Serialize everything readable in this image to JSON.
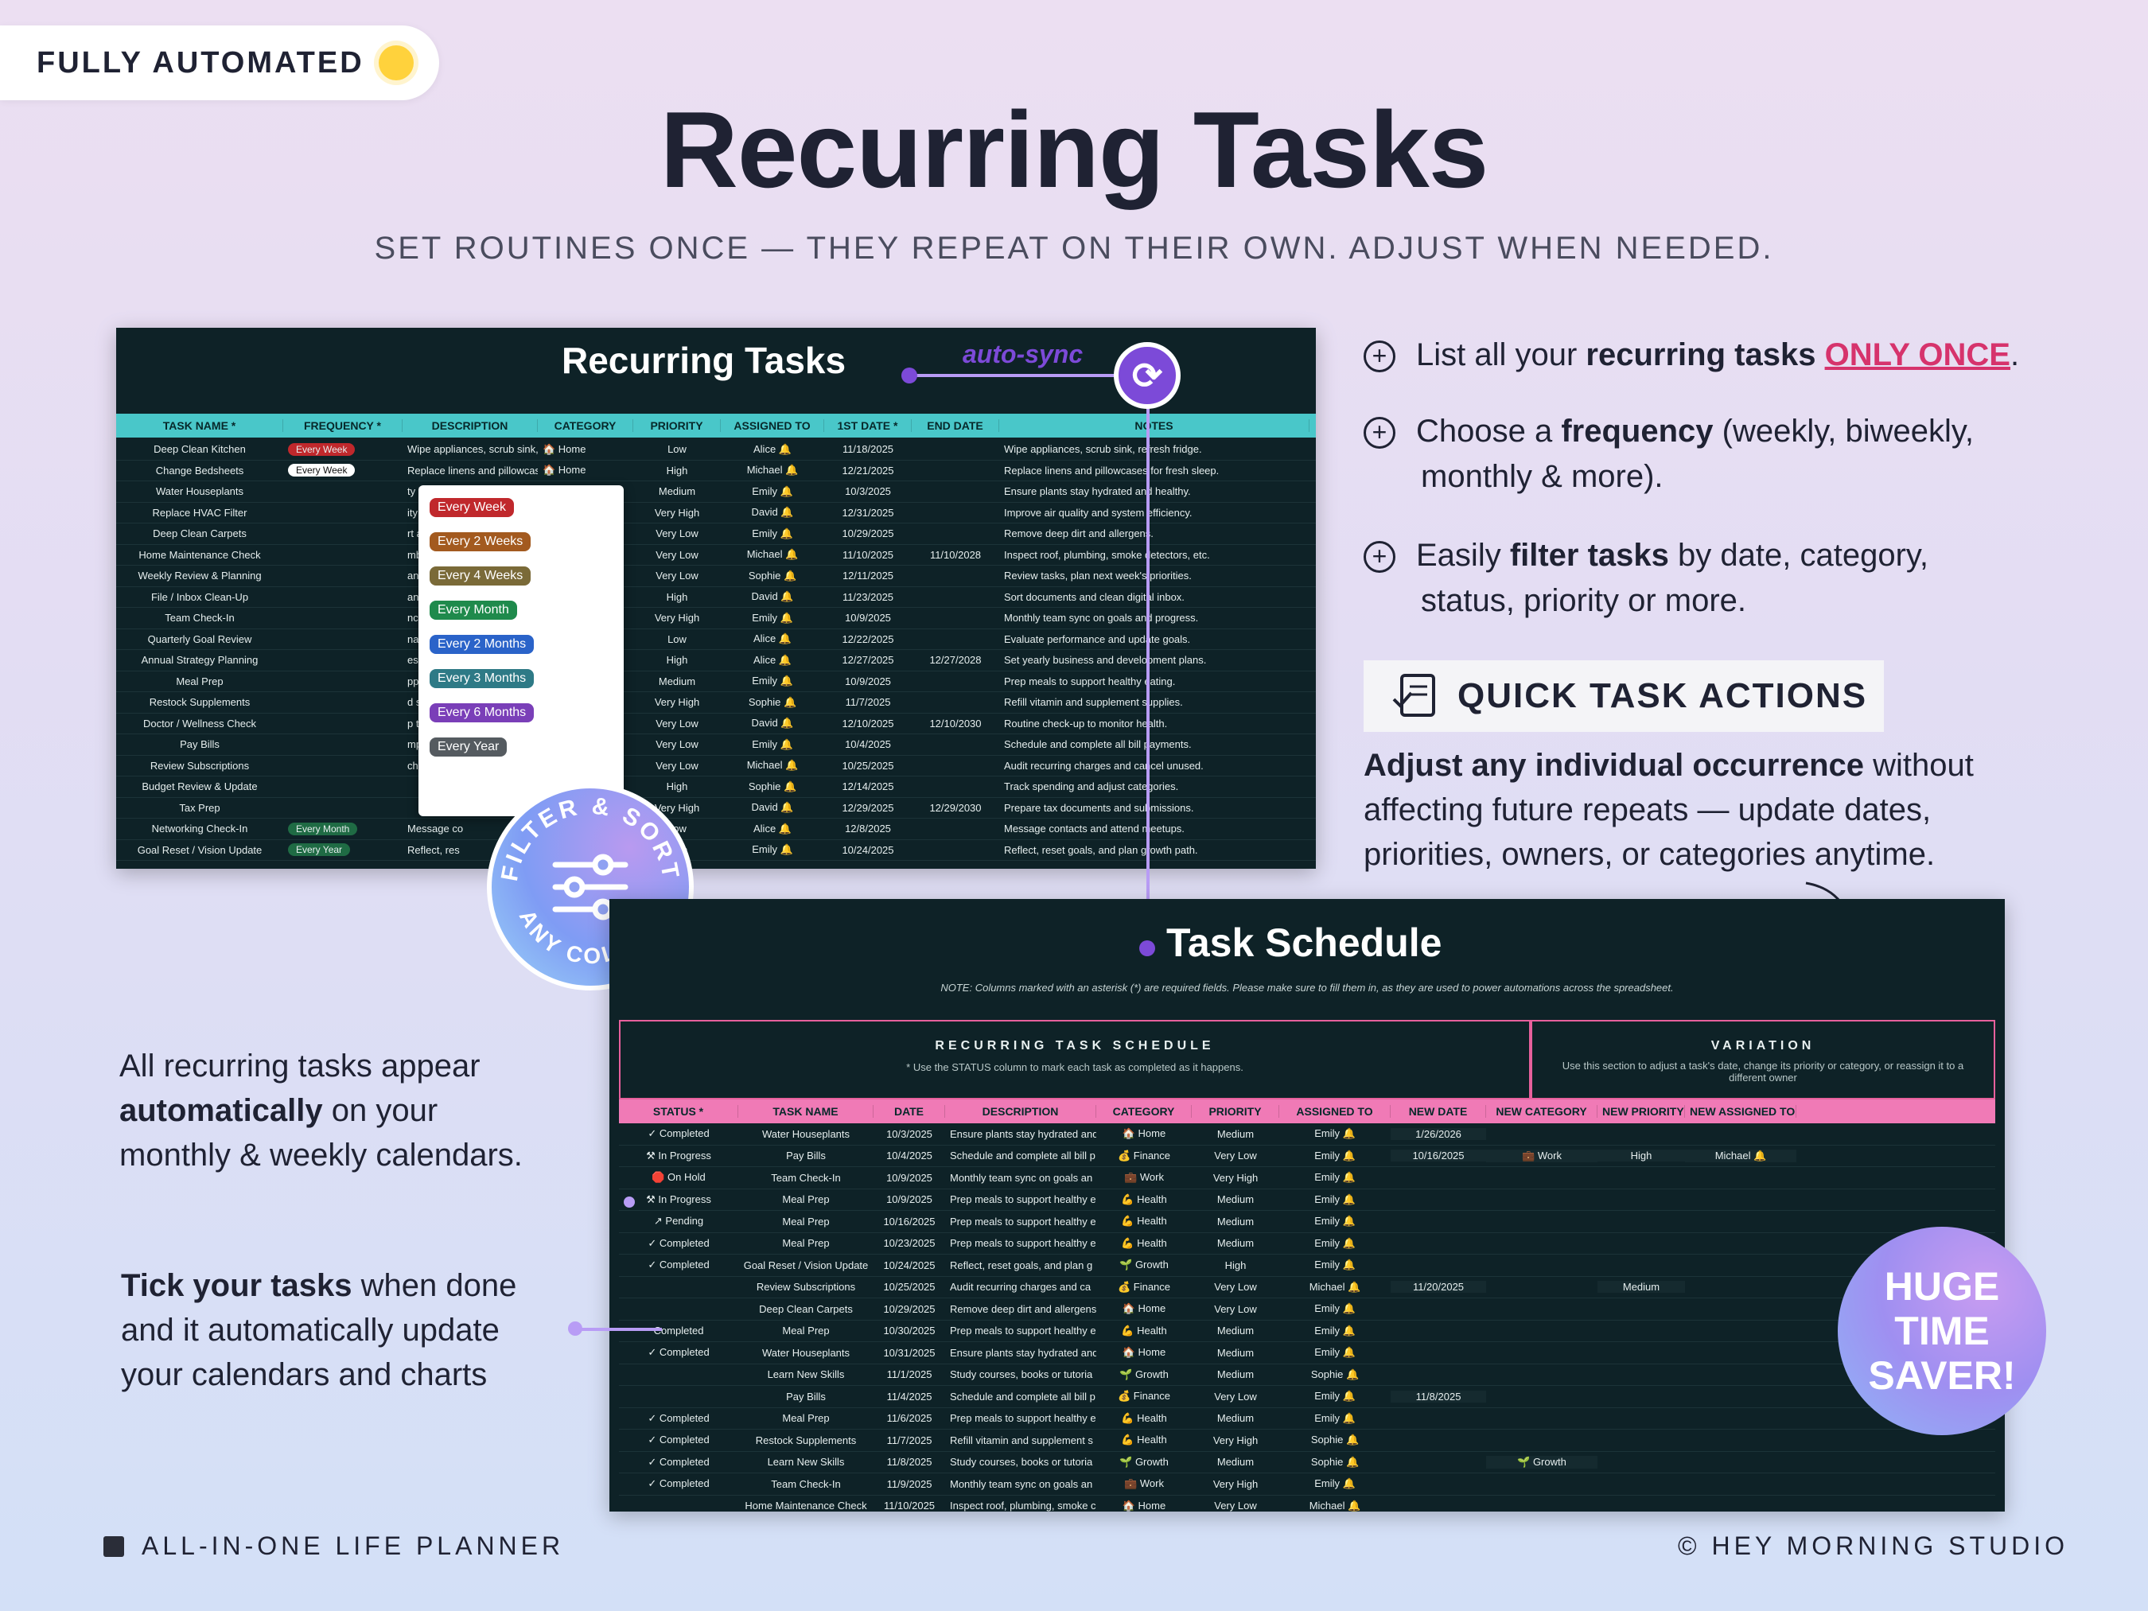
{
  "badge_top": {
    "label": "FULLY AUTOMATED",
    "icon": "lightbulb-icon"
  },
  "title": "Recurring Tasks",
  "subtitle": "SET ROUTINES ONCE — THEY REPEAT ON THEIR OWN. ADJUST WHEN NEEDED.",
  "auto_sync": "auto-sync",
  "screen1": {
    "title": "Recurring Tasks",
    "columns": [
      "TASK NAME *",
      "FREQUENCY *",
      "DESCRIPTION",
      "CATEGORY",
      "PRIORITY",
      "ASSIGNED TO",
      "1ST DATE *",
      "END DATE",
      "NOTES"
    ],
    "rows": [
      [
        "Deep Clean Kitchen",
        "Every Week",
        "Wipe appliances, scrub sink, re",
        "🏠 Home",
        "Low",
        "Alice 🔔",
        "11/18/2025",
        "",
        "Wipe appliances, scrub sink, refresh fridge."
      ],
      [
        "Change Bedsheets",
        "Every Week",
        "Replace linens and pillowcases",
        "🏠 Home",
        "High",
        "Michael 🔔",
        "12/21/2025",
        "",
        "Replace linens and pillowcases for fresh sleep."
      ],
      [
        "Water Houseplants",
        "",
        "ty hydrated and",
        "🏠 Home",
        "Medium",
        "Emily 🔔",
        "10/3/2025",
        "",
        "Ensure plants stay hydrated and healthy."
      ],
      [
        "Replace HVAC Filter",
        "",
        "ity and system",
        "🏠 Home",
        "Very High",
        "David 🔔",
        "12/31/2025",
        "",
        "Improve air quality and system efficiency."
      ],
      [
        "Deep Clean Carpets",
        "",
        "rt and allergens",
        "🏠 Home",
        "Very Low",
        "Emily 🔔",
        "10/29/2025",
        "",
        "Remove deep dirt and allergens."
      ],
      [
        "Home Maintenance Check",
        "",
        "mbing, smoke c",
        "🏠 Home",
        "Very Low",
        "Michael 🔔",
        "11/10/2025",
        "11/10/2028",
        "Inspect roof, plumbing, smoke detectors, etc."
      ],
      [
        "Weekly Review & Planning",
        "",
        "an next week's",
        "💼 Work",
        "Very Low",
        "Sophie 🔔",
        "12/11/2025",
        "",
        "Review tasks, plan next week's priorities."
      ],
      [
        "File / Inbox Clean-Up",
        "",
        "and clean digit",
        "💼 Work",
        "High",
        "David 🔔",
        "11/23/2025",
        "",
        "Sort documents and clean digital inbox."
      ],
      [
        "Team Check-In",
        "",
        "nc on goals an",
        "💼 Work",
        "Very High",
        "Emily 🔔",
        "10/9/2025",
        "",
        "Monthly team sync on goals and progress."
      ],
      [
        "Quarterly Goal Review",
        "",
        "nance and upd",
        "💼 Work",
        "Low",
        "Alice 🔔",
        "12/22/2025",
        "",
        "Evaluate performance and update goals."
      ],
      [
        "Annual Strategy Planning",
        "",
        "ess and develo",
        "💼 Work",
        "High",
        "Alice 🔔",
        "12/27/2025",
        "12/27/2028",
        "Set yearly business and development plans."
      ],
      [
        "Meal Prep",
        "",
        "pport healthy e",
        "💪 Health",
        "Medium",
        "Emily 🔔",
        "10/9/2025",
        "",
        "Prep meals to support healthy eating."
      ],
      [
        "Restock Supplements",
        "",
        "d supplement s",
        "💪 Health",
        "Very High",
        "Sophie 🔔",
        "11/7/2025",
        "",
        "Refill vitamin and supplement supplies."
      ],
      [
        "Doctor / Wellness Check",
        "",
        "p to monitor he",
        "💪 Health",
        "Very Low",
        "David 🔔",
        "12/10/2025",
        "12/10/2030",
        "Routine check-up to monitor health."
      ],
      [
        "Pay Bills",
        "",
        "mplete all bill p",
        "💰 Finance",
        "Very Low",
        "Emily 🔔",
        "10/4/2025",
        "",
        "Schedule and complete all bill payments."
      ],
      [
        "Review Subscriptions",
        "",
        "charges and ca",
        "💰 Finance",
        "Very Low",
        "Michael 🔔",
        "10/25/2025",
        "",
        "Audit recurring charges and cancel unused."
      ],
      [
        "Budget Review & Update",
        "",
        "",
        "💰 Finance",
        "High",
        "Sophie 🔔",
        "12/14/2025",
        "",
        "Track spending and adjust categories."
      ],
      [
        "Tax Prep",
        "",
        "",
        "💰 Finance",
        "Very High",
        "David 🔔",
        "12/29/2025",
        "12/29/2030",
        "Prepare tax documents and submissions."
      ],
      [
        "Networking Check-In",
        "Every Month",
        "Message co",
        "",
        "Low",
        "Alice 🔔",
        "12/8/2025",
        "",
        "Message contacts and attend meetups."
      ],
      [
        "Goal Reset / Vision Update",
        "Every Year",
        "Reflect, res",
        "",
        "High",
        "Emily 🔔",
        "10/24/2025",
        "",
        "Reflect, reset goals, and plan growth path."
      ]
    ],
    "dropdown": [
      {
        "label": "Every Week",
        "color": "#c0282c"
      },
      {
        "label": "Every 2 Weeks",
        "color": "#a35a1f"
      },
      {
        "label": "Every 4 Weeks",
        "color": "#7a6a38"
      },
      {
        "label": "Every Month",
        "color": "#1f8a4c"
      },
      {
        "label": "Every 2 Months",
        "color": "#2a63c9"
      },
      {
        "label": "Every 3 Months",
        "color": "#2e7a86"
      },
      {
        "label": "Every 6 Months",
        "color": "#7a3fb8"
      },
      {
        "label": "Every Year",
        "color": "#555b60"
      }
    ]
  },
  "filter_badge": {
    "top_text": "FILTER & SORT",
    "bottom_text": "ANY COLUMN",
    "icon": "sliders-icon"
  },
  "features": [
    {
      "prefix": "List all your ",
      "bold": "recurring tasks",
      "mid": " ",
      "highlight": "ONLY ONCE",
      "suffix": "."
    },
    {
      "prefix": "Choose a ",
      "bold": "frequency",
      "mid": " (weekly, biweekly,",
      "line2": "monthly & more)."
    },
    {
      "prefix": "Easily ",
      "bold": "filter tasks",
      "mid": " by date, category,",
      "line2": "status, priority or more."
    }
  ],
  "quick_actions": {
    "label": "QUICK TASK ACTIONS",
    "icon": "checklist-icon"
  },
  "quick_desc": {
    "bold": "Adjust any individual occurrence",
    "rest1": " without",
    "line2": "affecting future repeats — update dates,",
    "line3": "priorities, owners, or categories anytime."
  },
  "screen2": {
    "title": "Task Schedule",
    "note": "NOTE: Columns marked with an asterisk (*) are required fields. Please make sure to fill them in, as they are used to power automations across the spreadsheet.",
    "section_left": "RECURRING TASK SCHEDULE",
    "section_left_sub": "* Use the STATUS column to mark each task as completed as it happens.",
    "section_right": "VARIATION",
    "section_right_sub": "Use this section to adjust a task's date, change its priority or category, or reassign it to a different owner",
    "columns": [
      "STATUS *",
      "TASK NAME",
      "DATE",
      "DESCRIPTION",
      "CATEGORY",
      "PRIORITY",
      "ASSIGNED TO",
      "NEW DATE",
      "NEW CATEGORY",
      "NEW PRIORITY",
      "NEW ASSIGNED TO"
    ],
    "rows": [
      [
        "✓ Completed",
        "Water Houseplants",
        "10/3/2025",
        "Ensure plants stay hydrated and",
        "🏠 Home",
        "Medium",
        "Emily 🔔",
        "1/26/2026",
        "",
        "",
        ""
      ],
      [
        "⚒ In Progress",
        "Pay Bills",
        "10/4/2025",
        "Schedule and complete all bill p",
        "💰 Finance",
        "Very Low",
        "Emily 🔔",
        "10/16/2025",
        "💼 Work",
        "High",
        "Michael 🔔"
      ],
      [
        "🛑 On Hold",
        "Team Check-In",
        "10/9/2025",
        "Monthly team sync on goals an",
        "💼 Work",
        "Very High",
        "Emily 🔔",
        "",
        "",
        "",
        ""
      ],
      [
        "⚒ In Progress",
        "Meal Prep",
        "10/9/2025",
        "Prep meals to support healthy e",
        "💪 Health",
        "Medium",
        "Emily 🔔",
        "",
        "",
        "",
        ""
      ],
      [
        "↗ Pending",
        "Meal Prep",
        "10/16/2025",
        "Prep meals to support healthy e",
        "💪 Health",
        "Medium",
        "Emily 🔔",
        "",
        "",
        "",
        ""
      ],
      [
        "✓ Completed",
        "Meal Prep",
        "10/23/2025",
        "Prep meals to support healthy e",
        "💪 Health",
        "Medium",
        "Emily 🔔",
        "",
        "",
        "",
        ""
      ],
      [
        "✓ Completed",
        "Goal Reset / Vision Update",
        "10/24/2025",
        "Reflect, reset goals, and plan g",
        "🌱 Growth",
        "High",
        "Emily 🔔",
        "",
        "",
        "",
        ""
      ],
      [
        "",
        "Review Subscriptions",
        "10/25/2025",
        "Audit recurring charges and ca",
        "💰 Finance",
        "Very Low",
        "Michael 🔔",
        "11/20/2025",
        "",
        "Medium",
        ""
      ],
      [
        "",
        "Deep Clean Carpets",
        "10/29/2025",
        "Remove deep dirt and allergens",
        "🏠 Home",
        "Very Low",
        "Emily 🔔",
        "",
        "",
        "",
        ""
      ],
      [
        "Completed",
        "Meal Prep",
        "10/30/2025",
        "Prep meals to support healthy e",
        "💪 Health",
        "Medium",
        "Emily 🔔",
        "",
        "",
        "",
        ""
      ],
      [
        "✓ Completed",
        "Water Houseplants",
        "10/31/2025",
        "Ensure plants stay hydrated and",
        "🏠 Home",
        "Medium",
        "Emily 🔔",
        "",
        "",
        "",
        ""
      ],
      [
        "",
        "Learn New Skills",
        "11/1/2025",
        "Study courses, books or tutoria",
        "🌱 Growth",
        "Medium",
        "Sophie 🔔",
        "",
        "",
        "",
        ""
      ],
      [
        "",
        "Pay Bills",
        "11/4/2025",
        "Schedule and complete all bill p",
        "💰 Finance",
        "Very Low",
        "Emily 🔔",
        "11/8/2025",
        "",
        "",
        ""
      ],
      [
        "✓ Completed",
        "Meal Prep",
        "11/6/2025",
        "Prep meals to support healthy e",
        "💪 Health",
        "Medium",
        "Emily 🔔",
        "",
        "",
        "",
        ""
      ],
      [
        "✓ Completed",
        "Restock Supplements",
        "11/7/2025",
        "Refill vitamin and supplement s",
        "💪 Health",
        "Very High",
        "Sophie 🔔",
        "",
        "",
        "",
        ""
      ],
      [
        "✓ Completed",
        "Learn New Skills",
        "11/8/2025",
        "Study courses, books or tutoria",
        "🌱 Growth",
        "Medium",
        "Sophie 🔔",
        "",
        "🌱 Growth",
        "",
        ""
      ],
      [
        "✓ Completed",
        "Team Check-In",
        "11/9/2025",
        "Monthly team sync on goals an",
        "💼 Work",
        "Very High",
        "Emily 🔔",
        "",
        "",
        "",
        ""
      ],
      [
        "",
        "Home Maintenance Check",
        "11/10/2025",
        "Inspect roof, plumbing, smoke c",
        "🏠 Home",
        "Very Low",
        "Michael 🔔",
        "",
        "",
        "",
        ""
      ]
    ]
  },
  "side1": {
    "line1": "All recurring tasks appear",
    "bold": "automatically",
    "rest": " on your",
    "line3": "monthly & weekly calendars."
  },
  "side2": {
    "bold": "Tick your tasks",
    "rest": " when done",
    "line2": "and it automatically update",
    "line3": "your calendars and charts"
  },
  "huge_badge": [
    "HUGE",
    "TIME",
    "SAVER!"
  ],
  "footer_left": "ALL-IN-ONE LIFE PLANNER",
  "footer_right": "© HEY MORNING STUDIO",
  "colors": {
    "accent_purple": "#7c4ad8",
    "highlight_pink": "#d6336c",
    "teal_header": "#49c7c9",
    "pink_header": "#f07ab6"
  }
}
